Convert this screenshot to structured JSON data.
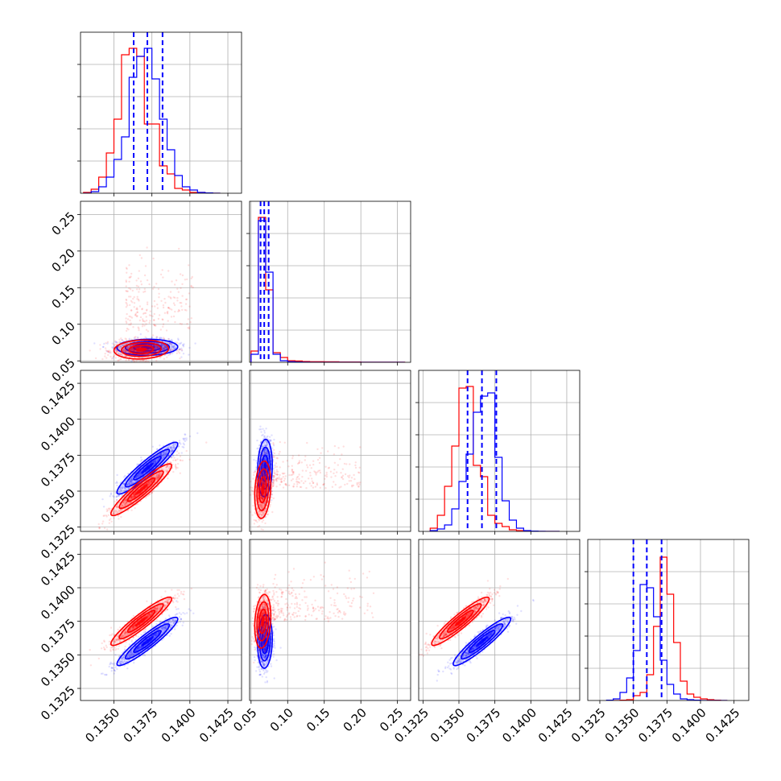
{
  "colors": {
    "series_a": "#ff0000",
    "series_b": "#0000ff",
    "grid": "#b0b0b0",
    "axes": "#000000"
  },
  "chart_data": {
    "type": "scatter",
    "subtype": "corner-plot",
    "grid": true,
    "series": [
      {
        "color": "#ff0000"
      },
      {
        "color": "#0000ff"
      }
    ],
    "parameters": [
      {
        "range": [
          0.1328,
          0.1434
        ],
        "ticks": [
          0.135,
          0.1375,
          0.14,
          0.1425
        ],
        "tick_labels": [
          "0.1350",
          "0.1375",
          "0.1400",
          "0.1425"
        ]
      },
      {
        "range": [
          0.048,
          0.268
        ],
        "ticks": [
          0.05,
          0.1,
          0.15,
          0.2,
          0.25
        ],
        "tick_labels": [
          "0.05",
          "0.10",
          "0.15",
          "0.20",
          "0.25"
        ]
      },
      {
        "range": [
          0.1322,
          0.1434
        ],
        "ticks": [
          0.1325,
          0.135,
          0.1375,
          0.14,
          0.1425
        ],
        "tick_labels": [
          "0.1325",
          "0.1350",
          "0.1375",
          "0.1400",
          "0.1425"
        ]
      },
      {
        "range": [
          0.1316,
          0.1436
        ],
        "ticks": [
          0.1325,
          0.135,
          0.1375,
          0.14,
          0.1425
        ],
        "tick_labels": [
          "0.1325",
          "0.1350",
          "0.1375",
          "0.1400",
          "0.1425"
        ]
      }
    ],
    "histograms": [
      {
        "param": 0,
        "bin_edges": [
          0.133,
          0.1335,
          0.134,
          0.1345,
          0.135,
          0.1355,
          0.136,
          0.1365,
          0.137,
          0.1375,
          0.138,
          0.1385,
          0.139,
          0.1395,
          0.14,
          0.1405,
          0.141,
          0.1415,
          0.142
        ],
        "series_a": [
          0.005,
          0.025,
          0.1,
          0.25,
          0.46,
          0.86,
          0.9,
          0.85,
          0.43,
          0.43,
          0.17,
          0.12,
          0.03,
          0.02,
          0.005,
          0.005,
          0.002,
          0
        ],
        "series_b": [
          0,
          0.01,
          0.04,
          0.1,
          0.21,
          0.35,
          0.72,
          0.85,
          0.9,
          0.71,
          0.46,
          0.27,
          0.11,
          0.04,
          0.02,
          0.005,
          0.002,
          0
        ],
        "quantiles_b": [
          0.1363,
          0.1372,
          0.1382
        ]
      },
      {
        "param": 1,
        "bin_edges": [
          0.05,
          0.06,
          0.07,
          0.08,
          0.09,
          0.1,
          0.11,
          0.12,
          0.13,
          0.14,
          0.15,
          0.16,
          0.17,
          0.18,
          0.19,
          0.2,
          0.21,
          0.22,
          0.23,
          0.24,
          0.25,
          0.26
        ],
        "series_a": [
          0.07,
          0.9,
          0.45,
          0.06,
          0.03,
          0.01,
          0.008,
          0.005,
          0.004,
          0.004,
          0.003,
          0.003,
          0.002,
          0.002,
          0.002,
          0.001,
          0.001,
          0.001,
          0.001,
          0.001,
          0.001
        ],
        "series_b": [
          0.05,
          0.88,
          0.56,
          0.05,
          0.01,
          0.004,
          0.002,
          0.001,
          0,
          0,
          0,
          0,
          0,
          0,
          0,
          0,
          0,
          0,
          0,
          0,
          0
        ],
        "quantiles_b": [
          0.063,
          0.068,
          0.074
        ]
      },
      {
        "param": 2,
        "bin_edges": [
          0.133,
          0.1335,
          0.134,
          0.1345,
          0.135,
          0.1355,
          0.136,
          0.1365,
          0.137,
          0.1375,
          0.138,
          0.1385,
          0.139,
          0.1395,
          0.14,
          0.1405,
          0.141,
          0.1415,
          0.142
        ],
        "series_a": [
          0.02,
          0.1,
          0.28,
          0.53,
          0.89,
          0.9,
          0.41,
          0.34,
          0.1,
          0.05,
          0.03,
          0.01,
          0.005,
          0.002,
          0.001,
          0,
          0,
          0
        ],
        "series_b": [
          0.005,
          0.015,
          0.04,
          0.14,
          0.31,
          0.48,
          0.74,
          0.84,
          0.86,
          0.46,
          0.19,
          0.07,
          0.02,
          0.005,
          0.002,
          0.001,
          0,
          0
        ],
        "quantiles_b": [
          0.1356,
          0.1366,
          0.1376
        ]
      },
      {
        "param": 3,
        "bin_edges": [
          0.133,
          0.1335,
          0.134,
          0.1345,
          0.135,
          0.1355,
          0.136,
          0.1365,
          0.137,
          0.1375,
          0.138,
          0.1385,
          0.139,
          0.1395,
          0.14,
          0.1405,
          0.141,
          0.1415,
          0.142
        ],
        "series_a": [
          0,
          0,
          0.002,
          0.005,
          0.03,
          0.05,
          0.16,
          0.46,
          0.89,
          0.66,
          0.36,
          0.12,
          0.04,
          0.02,
          0.01,
          0.005,
          0.002,
          0
        ],
        "series_b": [
          0.002,
          0.01,
          0.05,
          0.14,
          0.31,
          0.72,
          0.7,
          0.52,
          0.25,
          0.1,
          0.04,
          0.01,
          0.005,
          0.002,
          0,
          0,
          0,
          0
        ],
        "quantiles_b": [
          0.135,
          0.136,
          0.1371
        ]
      }
    ],
    "scatter_panels": [
      {
        "x_param": 0,
        "y_param": 1,
        "series_a": {
          "mean": [
            0.1368,
            0.0655
          ],
          "sd": [
            0.0009,
            0.0065
          ],
          "corr": 0.1,
          "tail": {
            "x": [
              0.1358,
              0.1402
            ],
            "y": [
              0.09,
              0.22
            ]
          }
        },
        "series_b": {
          "mean": [
            0.1372,
            0.0685
          ],
          "sd": [
            0.001,
            0.0055
          ],
          "corr": 0.05
        }
      },
      {
        "x_param": 0,
        "y_param": 2,
        "series_a": {
          "mean": [
            0.1368,
            0.1351
          ],
          "sd": [
            0.001,
            0.0009
          ],
          "corr": 0.93
        },
        "series_b": {
          "mean": [
            0.1372,
            0.1366
          ],
          "sd": [
            0.001,
            0.0009
          ],
          "corr": 0.93
        }
      },
      {
        "x_param": 1,
        "y_param": 2,
        "series_a": {
          "mean": [
            0.066,
            0.1351
          ],
          "sd": [
            0.0055,
            0.001
          ],
          "corr": 0.2,
          "tail": {
            "x": [
              0.08,
              0.2
            ],
            "y": [
              0.1352,
              0.1392
            ]
          }
        },
        "series_b": {
          "mean": [
            0.069,
            0.1366
          ],
          "sd": [
            0.005,
            0.001
          ],
          "corr": 0.1
        }
      },
      {
        "x_param": 0,
        "y_param": 3,
        "series_a": {
          "mean": [
            0.1368,
            0.1375
          ],
          "sd": [
            0.001,
            0.0009
          ],
          "corr": 0.93
        },
        "series_b": {
          "mean": [
            0.1372,
            0.136
          ],
          "sd": [
            0.001,
            0.0009
          ],
          "corr": 0.93
        }
      },
      {
        "x_param": 1,
        "y_param": 3,
        "series_a": {
          "mean": [
            0.066,
            0.1375
          ],
          "sd": [
            0.0055,
            0.001
          ],
          "corr": 0.2,
          "tail": {
            "x": [
              0.08,
              0.22
            ],
            "y": [
              0.1375,
              0.1428
            ]
          }
        },
        "series_b": {
          "mean": [
            0.069,
            0.136
          ],
          "sd": [
            0.005,
            0.001
          ],
          "corr": 0.1
        }
      },
      {
        "x_param": 2,
        "y_param": 3,
        "series_a": {
          "mean": [
            0.1351,
            0.1375
          ],
          "sd": [
            0.001,
            0.0009
          ],
          "corr": 0.93
        },
        "series_b": {
          "mean": [
            0.1366,
            0.136
          ],
          "sd": [
            0.001,
            0.0009
          ],
          "corr": 0.93
        }
      }
    ]
  }
}
